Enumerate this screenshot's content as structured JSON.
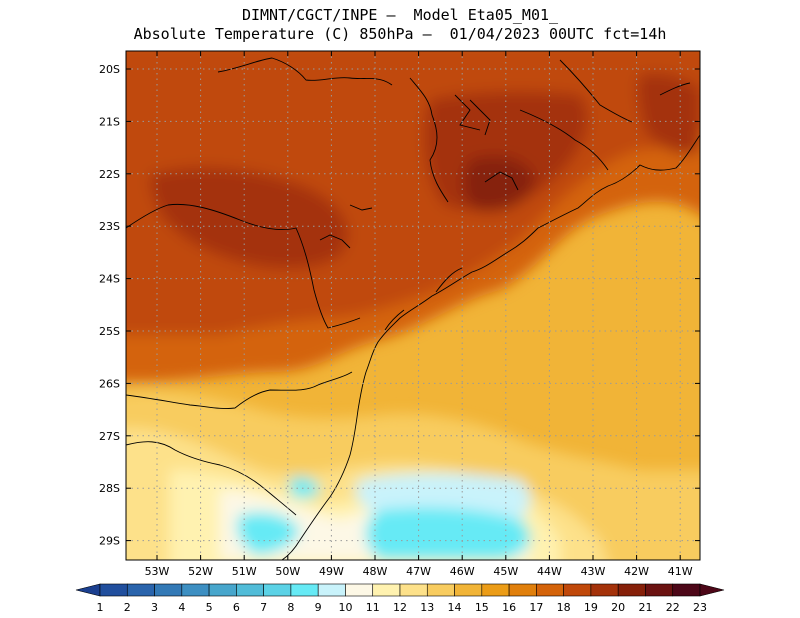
{
  "title_line1": "DIMNT/CGCT/INPE –  Model Eta05_M01_",
  "title_line2": "Absolute Temperature (C) 850hPa –  01/04/2023 00UTC fct=14h",
  "lat_labels": [
    "20S",
    "21S",
    "22S",
    "23S",
    "24S",
    "25S",
    "26S",
    "27S",
    "28S",
    "29S"
  ],
  "lon_labels": [
    "53W",
    "52W",
    "51W",
    "50W",
    "49W",
    "48W",
    "47W",
    "46W",
    "45W",
    "44W",
    "43W",
    "42W",
    "41W"
  ],
  "colorbar": {
    "labels": [
      "1",
      "2",
      "3",
      "4",
      "5",
      "6",
      "7",
      "8",
      "9",
      "10",
      "11",
      "12",
      "13",
      "14",
      "15",
      "16",
      "17",
      "18",
      "19",
      "20",
      "21",
      "22",
      "23"
    ],
    "colors": [
      "#1b3f8f",
      "#214f9e",
      "#2a64ac",
      "#3379b6",
      "#3d8fc2",
      "#47a6cc",
      "#51bcd8",
      "#5bd2e6",
      "#66eaf5",
      "#c9f3fb",
      "#fdf8e6",
      "#fff2b0",
      "#fde18a",
      "#f8cc5f",
      "#f1b437",
      "#eb9c17",
      "#e07f0c",
      "#d4630a",
      "#c0480a",
      "#a4320a",
      "#862009",
      "#6b1211",
      "#4d0718"
    ]
  }
}
